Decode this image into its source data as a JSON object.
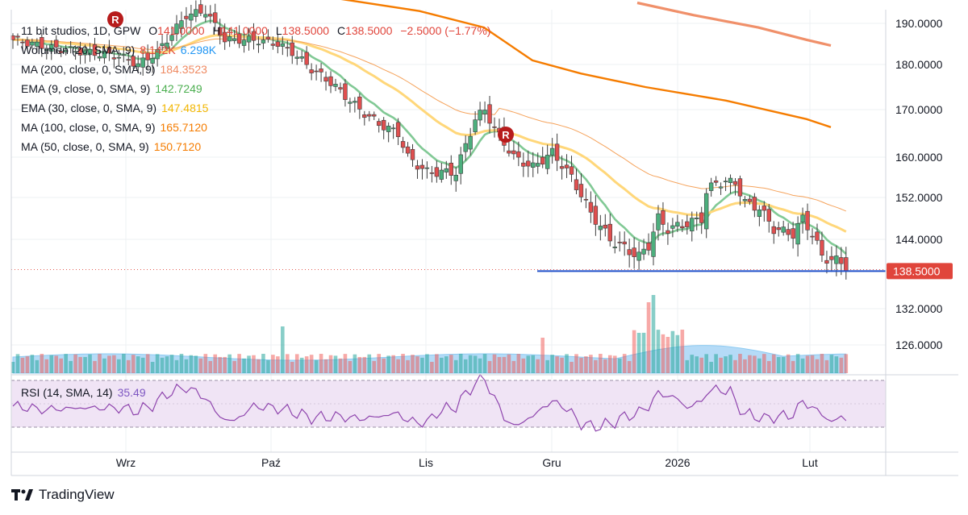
{
  "header": {
    "symbol": "11 bit studios, 1D, GPW",
    "o_label": "O",
    "o_value": "141.0000",
    "h_label": "H",
    "h_value": "141.0000",
    "l_label": "L",
    "l_value": "138.5000",
    "c_label": "C",
    "c_value": "138.5000",
    "change": "−2.5000 (−1.77%)"
  },
  "legend": [
    {
      "label": "Wolumen (20, SMA, 9)",
      "values": [
        "8.142K",
        "6.298K"
      ],
      "colors": [
        "#ef5350",
        "#2196f3"
      ]
    },
    {
      "label": "MA (200, close, 0, SMA, 9)",
      "values": [
        "184.3523"
      ],
      "colors": [
        "#ef8a62"
      ]
    },
    {
      "label": "EMA (9, close, 0, SMA, 9)",
      "values": [
        "142.7249"
      ],
      "colors": [
        "#66bb6a"
      ]
    },
    {
      "label": "EMA (30, close, 0, SMA, 9)",
      "values": [
        "147.4815"
      ],
      "colors": [
        "#fbc02d"
      ]
    },
    {
      "label": "MA (100, close, 0, SMA, 9)",
      "values": [
        "165.7120"
      ],
      "colors": [
        "#f57c00"
      ]
    },
    {
      "label": "MA (50, close, 0, SMA, 9)",
      "values": [
        "150.7120"
      ],
      "colors": [
        "#f57c00"
      ]
    }
  ],
  "rsi_legend": {
    "label": "RSI (14, SMA, 14)",
    "value": "35.49"
  },
  "brand": "TradingView",
  "badges": [
    "R",
    "R"
  ],
  "colors": {
    "up": "#26a69a",
    "down": "#ef5350",
    "up_fill": "#4caf7d",
    "down_fill": "#e04f4f",
    "ema9": "#81c995",
    "ema30": "#ffd77a",
    "ma50": "#f5a35c",
    "ma100": "#f57c00",
    "ma200": "#f0906a",
    "support": "#1e4fc9",
    "rsi": "#8e44ad",
    "rsi_band": "#f0e4f5",
    "vol_ma": "#8ecbf2",
    "price_label": "#e0453b"
  },
  "chart_data": {
    "type": "candlestick",
    "title": "11 bit studios, 1D, GPW",
    "price_axis": {
      "ticks": [
        "190.0000",
        "180.0000",
        "170.0000",
        "160.0000",
        "152.0000",
        "144.0000",
        "132.0000",
        "126.0000"
      ],
      "current": "138.5000"
    },
    "x_axis_ticks": [
      "Wrz",
      "Paź",
      "Lis",
      "Gru",
      "2026",
      "Lut"
    ],
    "last_close": 138.5,
    "support_level": 138.5,
    "indicators": {
      "ema9_last": 142.7249,
      "ema30_last": 147.4815,
      "ma50_last": 150.712,
      "ma100_last": 165.712,
      "ma200_last": 184.3523,
      "rsi_last": 35.49,
      "volume_last": "8.142K",
      "volume_ma_last": "6.298K"
    },
    "grid": true
  }
}
